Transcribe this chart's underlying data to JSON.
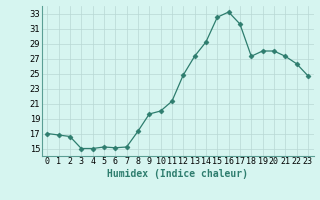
{
  "x": [
    0,
    1,
    2,
    3,
    4,
    5,
    6,
    7,
    8,
    9,
    10,
    11,
    12,
    13,
    14,
    15,
    16,
    17,
    18,
    19,
    20,
    21,
    22,
    23
  ],
  "y": [
    17,
    16.8,
    16.6,
    15,
    15,
    15.2,
    15.1,
    15.2,
    17.3,
    19.6,
    20,
    21.3,
    24.8,
    27.3,
    29.2,
    32.5,
    33.2,
    31.6,
    27.3,
    28,
    28,
    27.3,
    26.3,
    24.7
  ],
  "line_color": "#2e7d6e",
  "marker": "D",
  "marker_size": 2.5,
  "bg_color": "#d6f5f0",
  "grid_color": "#b8d8d4",
  "xlabel": "Humidex (Indice chaleur)",
  "xlim": [
    -0.5,
    23.5
  ],
  "ylim": [
    14,
    34
  ],
  "yticks": [
    15,
    17,
    19,
    21,
    23,
    25,
    27,
    29,
    31,
    33
  ],
  "xtick_labels": [
    "0",
    "1",
    "2",
    "3",
    "4",
    "5",
    "6",
    "7",
    "8",
    "9",
    "10",
    "11",
    "12",
    "13",
    "14",
    "15",
    "16",
    "17",
    "18",
    "19",
    "20",
    "21",
    "22",
    "23"
  ],
  "xlabel_fontsize": 7,
  "tick_fontsize": 6,
  "spine_color": "#5a9e94"
}
